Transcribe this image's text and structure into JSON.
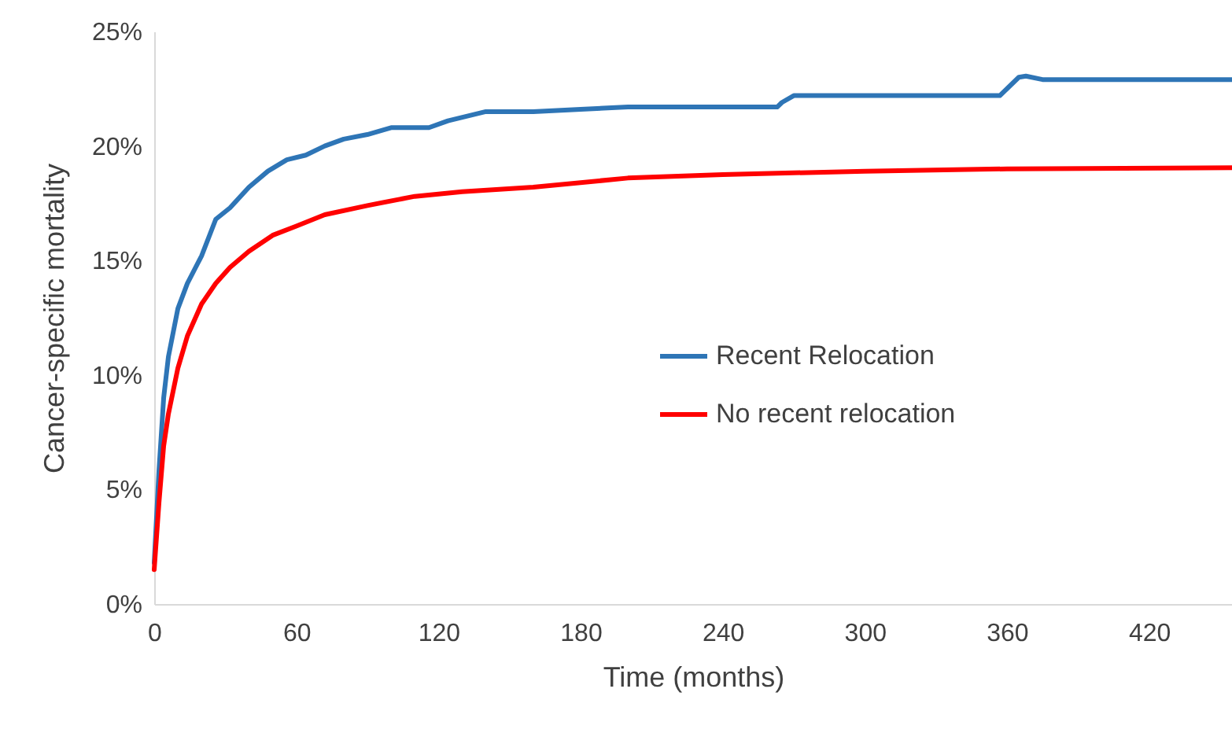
{
  "chart_data": {
    "type": "line",
    "xlabel": "Time (months)",
    "ylabel": "Cancer-specific mortality",
    "xlim": [
      0,
      455
    ],
    "xticks": [
      0,
      60,
      120,
      180,
      240,
      300,
      360,
      420
    ],
    "ylim": [
      0,
      25
    ],
    "yticks": [
      {
        "value": 0,
        "label": "0%"
      },
      {
        "value": 5,
        "label": "5%"
      },
      {
        "value": 10,
        "label": "10%"
      },
      {
        "value": 15,
        "label": "15%"
      },
      {
        "value": 20,
        "label": "20%"
      },
      {
        "value": 25,
        "label": "25%"
      }
    ],
    "grid": false,
    "legend": "right",
    "marker": "none",
    "line_style": "solid",
    "series": [
      {
        "name": "Recent Relocation",
        "color": "#2e75b6",
        "x": [
          0,
          2,
          4,
          6,
          10,
          14,
          20,
          26,
          32,
          40,
          48,
          56,
          64,
          72,
          80,
          90,
          100,
          116,
          124,
          140,
          160,
          180,
          200,
          263,
          265,
          270,
          357,
          365,
          368,
          375,
          455
        ],
        "values": [
          1.8,
          5.8,
          9.0,
          10.8,
          12.9,
          14.0,
          15.2,
          16.8,
          17.3,
          18.2,
          18.9,
          19.4,
          19.6,
          20.0,
          20.3,
          20.5,
          20.8,
          20.8,
          21.1,
          21.5,
          21.5,
          21.6,
          21.7,
          21.7,
          21.9,
          22.2,
          22.2,
          23.0,
          23.05,
          22.9,
          22.9
        ]
      },
      {
        "name": "No recent relocation",
        "color": "#ff0000",
        "x": [
          0,
          2,
          4,
          6,
          10,
          14,
          20,
          26,
          32,
          40,
          50,
          60,
          72,
          90,
          110,
          130,
          160,
          200,
          240,
          300,
          360,
          455
        ],
        "values": [
          1.5,
          4.4,
          6.9,
          8.3,
          10.3,
          11.7,
          13.1,
          14.0,
          14.7,
          15.4,
          16.1,
          16.5,
          17.0,
          17.4,
          17.8,
          18.0,
          18.2,
          18.6,
          18.75,
          18.9,
          19.0,
          19.05
        ]
      }
    ]
  }
}
